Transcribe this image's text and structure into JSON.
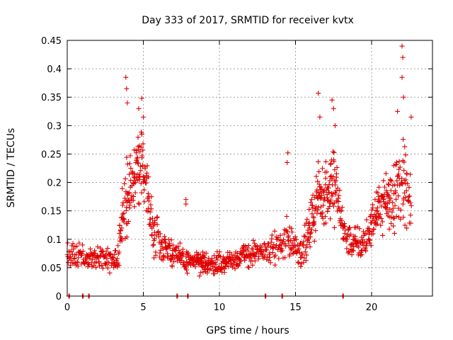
{
  "chart_data": {
    "type": "scatter",
    "title": "Day 333 of 2017, SRMTID for receiver kvtx",
    "xlabel": "GPS time / hours",
    "ylabel": "SRMTID / TECUs",
    "xlim": [
      0,
      24
    ],
    "ylim": [
      0,
      0.45
    ],
    "xticks": [
      0,
      5,
      10,
      15,
      20
    ],
    "xtick_labels": [
      "0",
      "5",
      "10",
      "15",
      "20"
    ],
    "yticks": [
      0,
      0.05,
      0.1,
      0.15,
      0.2,
      0.25,
      0.3,
      0.35,
      0.4,
      0.45
    ],
    "ytick_labels": [
      "0",
      "0.05",
      "0.1",
      "0.15",
      "0.2",
      "0.25",
      "0.3",
      "0.35",
      "0.4",
      "0.45"
    ],
    "grid": true,
    "marker": "plus",
    "color": "#e00000",
    "zero_markers_x": [
      0.1,
      1.0,
      1.4,
      7.2,
      7.9,
      13.0,
      14.1,
      18.1
    ],
    "envelope": [
      {
        "t": 0.0,
        "base": 0.07,
        "spread": 0.035,
        "density": 10
      },
      {
        "t": 3.3,
        "base": 0.065,
        "spread": 0.03,
        "density": 12
      },
      {
        "t": 3.8,
        "base": 0.17,
        "spread": 0.09,
        "density": 18
      },
      {
        "t": 4.4,
        "base": 0.21,
        "spread": 0.07,
        "density": 18
      },
      {
        "t": 5.0,
        "base": 0.24,
        "spread": 0.08,
        "density": 18
      },
      {
        "t": 5.5,
        "base": 0.13,
        "spread": 0.07,
        "density": 14
      },
      {
        "t": 6.3,
        "base": 0.09,
        "spread": 0.045,
        "density": 12
      },
      {
        "t": 7.5,
        "base": 0.065,
        "spread": 0.03,
        "density": 12
      },
      {
        "t": 9.5,
        "base": 0.055,
        "spread": 0.03,
        "density": 14
      },
      {
        "t": 11.5,
        "base": 0.07,
        "spread": 0.03,
        "density": 12
      },
      {
        "t": 13.3,
        "base": 0.08,
        "spread": 0.035,
        "density": 10
      },
      {
        "t": 14.5,
        "base": 0.1,
        "spread": 0.05,
        "density": 12
      },
      {
        "t": 15.5,
        "base": 0.08,
        "spread": 0.04,
        "density": 12
      },
      {
        "t": 16.5,
        "base": 0.17,
        "spread": 0.08,
        "density": 18
      },
      {
        "t": 17.5,
        "base": 0.2,
        "spread": 0.09,
        "density": 18
      },
      {
        "t": 18.3,
        "base": 0.1,
        "spread": 0.04,
        "density": 12
      },
      {
        "t": 19.5,
        "base": 0.09,
        "spread": 0.04,
        "density": 12
      },
      {
        "t": 20.5,
        "base": 0.16,
        "spread": 0.06,
        "density": 16
      },
      {
        "t": 21.5,
        "base": 0.18,
        "spread": 0.09,
        "density": 18
      },
      {
        "t": 22.2,
        "base": 0.2,
        "spread": 0.1,
        "density": 16
      },
      {
        "t": 22.6,
        "base": 0.15,
        "spread": 0.06,
        "density": 10
      }
    ],
    "peaks": [
      {
        "x": 3.85,
        "y": 0.385
      },
      {
        "x": 3.9,
        "y": 0.365
      },
      {
        "x": 3.95,
        "y": 0.34
      },
      {
        "x": 4.9,
        "y": 0.348
      },
      {
        "x": 4.7,
        "y": 0.33
      },
      {
        "x": 5.0,
        "y": 0.315
      },
      {
        "x": 7.8,
        "y": 0.17
      },
      {
        "x": 7.8,
        "y": 0.162
      },
      {
        "x": 14.5,
        "y": 0.252
      },
      {
        "x": 14.45,
        "y": 0.235
      },
      {
        "x": 16.5,
        "y": 0.357
      },
      {
        "x": 17.4,
        "y": 0.345
      },
      {
        "x": 17.5,
        "y": 0.33
      },
      {
        "x": 16.6,
        "y": 0.315
      },
      {
        "x": 17.6,
        "y": 0.3
      },
      {
        "x": 22.0,
        "y": 0.44
      },
      {
        "x": 22.05,
        "y": 0.42
      },
      {
        "x": 22.0,
        "y": 0.385
      },
      {
        "x": 22.1,
        "y": 0.35
      },
      {
        "x": 21.7,
        "y": 0.325
      },
      {
        "x": 22.6,
        "y": 0.315
      }
    ]
  }
}
